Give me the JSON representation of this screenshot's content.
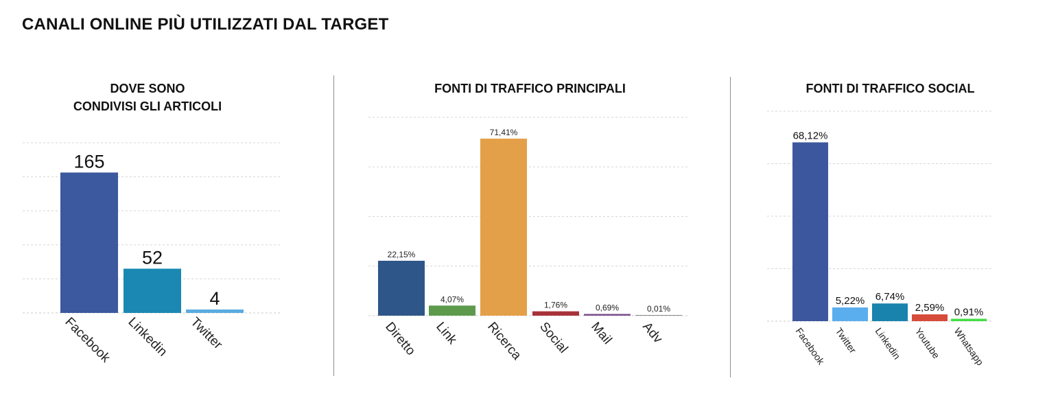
{
  "page": {
    "title": "CANALI ONLINE PIÙ UTILIZZATI DAL TARGET"
  },
  "charts": [
    {
      "title_lines": [
        "DOVE SONO",
        "CONDIVISI GLI ARTICOLI"
      ]
    },
    {
      "title_lines": [
        "FONTI DI TRAFFICO PRINCIPALI"
      ]
    },
    {
      "title_lines": [
        "FONTI DI TRAFFICO SOCIAL"
      ]
    }
  ],
  "chart_data": [
    {
      "type": "bar",
      "title": "DOVE SONO CONDIVISI GLI ARTICOLI",
      "categories": [
        "Facebook",
        "Linkedin",
        "Twitter"
      ],
      "values": [
        165,
        52,
        4
      ],
      "value_labels": [
        "165",
        "52",
        "4"
      ],
      "colors": [
        "#3c589e",
        "#1a88b2",
        "#5aabe0"
      ],
      "ylim": [
        0,
        200
      ],
      "grid": true,
      "gridline_step": 40
    },
    {
      "type": "bar",
      "title": "FONTI DI TRAFFICO PRINCIPALI",
      "categories": [
        "Diretto",
        "Link",
        "Ricerca",
        "Social",
        "Mail",
        "Adv"
      ],
      "values": [
        22.15,
        4.07,
        71.41,
        1.76,
        0.69,
        0.01
      ],
      "value_labels": [
        "22,15%",
        "4,07%",
        "71,41%",
        "1,76%",
        "0,69%",
        "0,01%"
      ],
      "colors": [
        "#2f5688",
        "#5e9a4c",
        "#e4a048",
        "#a8323a",
        "#7a4e8c",
        "#888888"
      ],
      "ylim": [
        0,
        80
      ],
      "grid": true,
      "gridline_step": 20
    },
    {
      "type": "bar",
      "title": "FONTI DI TRAFFICO SOCIAL",
      "categories": [
        "Facebook",
        "Twitter",
        "Linkedin",
        "Youtube",
        "Whatsapp"
      ],
      "values": [
        68.12,
        5.22,
        6.74,
        2.59,
        0.91
      ],
      "value_labels": [
        "68,12%",
        "5,22%",
        "6,74%",
        "2,59%",
        "0,91%"
      ],
      "colors": [
        "#3c579e",
        "#5aaeee",
        "#1a83ad",
        "#d64b3a",
        "#44dc44"
      ],
      "ylim": [
        0,
        80
      ],
      "grid": true,
      "gridline_step": 20
    }
  ]
}
